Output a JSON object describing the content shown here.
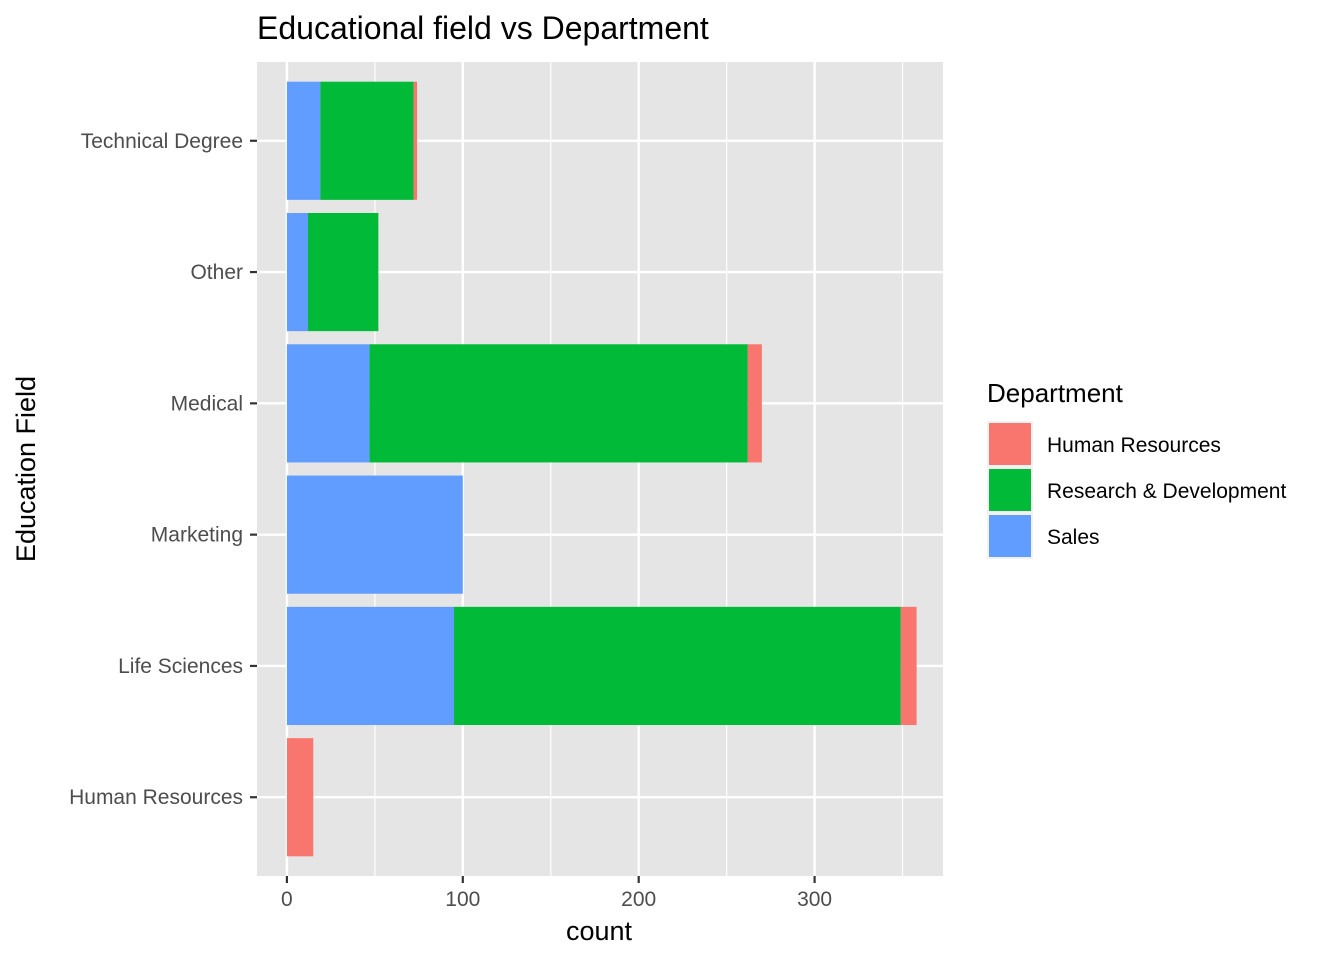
{
  "chart_data": {
    "type": "bar",
    "orientation": "horizontal",
    "stacked": true,
    "title": "Educational field vs Department",
    "xlabel": "count",
    "ylabel": "Education Field",
    "xlim": [
      -17,
      373
    ],
    "xticks": [
      0,
      100,
      200,
      300
    ],
    "grid": true,
    "categories": [
      "Human Resources",
      "Life Sciences",
      "Marketing",
      "Medical",
      "Other",
      "Technical Degree"
    ],
    "series": [
      {
        "name": "Human Resources",
        "color": "#F8766D",
        "values": [
          15,
          9,
          0,
          8,
          0,
          2
        ]
      },
      {
        "name": "Research & Development",
        "color": "#00BA38",
        "values": [
          0,
          254,
          0,
          215,
          40,
          53
        ]
      },
      {
        "name": "Sales",
        "color": "#619CFF",
        "values": [
          0,
          95,
          100,
          47,
          12,
          19
        ]
      }
    ],
    "legend": {
      "title": "Department",
      "position": "right",
      "items": [
        "Human Resources",
        "Research & Development",
        "Sales"
      ]
    },
    "panel_color": "#E5E5E5",
    "grid_color": "#FFFFFF"
  }
}
